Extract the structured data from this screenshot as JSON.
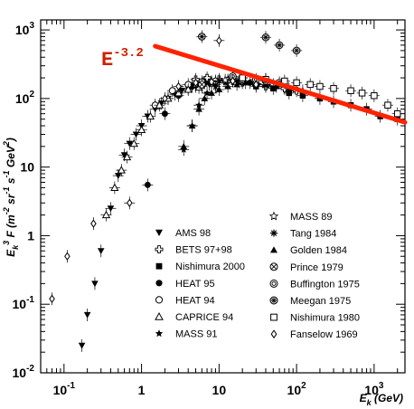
{
  "chart_data": {
    "type": "scatter",
    "xscale": "log",
    "yscale": "log",
    "xlim": [
      0.05,
      2500
    ],
    "ylim": [
      0.01,
      1400
    ],
    "xlabel": {
      "base": "E",
      "sub": "k",
      "unit": " (GeV)"
    },
    "ylabel": {
      "parts": [
        "E",
        "k",
        "3",
        " F (m",
        "-2",
        " sr",
        "-1",
        " s",
        "-1",
        " GeV",
        "2",
        ")"
      ]
    },
    "x_ticks": [
      {
        "base": "10",
        "exp": "-1"
      },
      {
        "base": "1",
        "exp": ""
      },
      {
        "base": "10",
        "exp": ""
      },
      {
        "base": "10",
        "exp": "2"
      },
      {
        "base": "10",
        "exp": "3"
      }
    ],
    "y_ticks": [
      {
        "base": "10",
        "exp": "-2"
      },
      {
        "base": "10",
        "exp": "-1"
      },
      {
        "base": "1",
        "exp": ""
      },
      {
        "base": "10",
        "exp": ""
      },
      {
        "base": "10",
        "exp": "2"
      },
      {
        "base": "10",
        "exp": "3"
      }
    ],
    "annotation": {
      "base": "E",
      "exp": "-3.2",
      "color": "#cc2200"
    },
    "power_law_line": {
      "x": [
        1.5,
        2500
      ],
      "y": [
        580,
        45
      ],
      "color": "#ff2200"
    },
    "legend": {
      "left": [
        "AMS 98",
        "BETS 97+98",
        "Nishimura 2000",
        "HEAT 95",
        "HEAT 94",
        "CAPRICE 94",
        "MASS 91"
      ],
      "right": [
        "MASS 89",
        "Tang 1984",
        "Golden 1984",
        "Prince 1979",
        "Buffington 1975",
        "Meegan 1975",
        "Nishimura 1980",
        "Fanselow 1969"
      ]
    },
    "series": [
      {
        "name": "AMS 98",
        "marker": "tri-down",
        "x": [
          0.17,
          0.2,
          0.25,
          0.3,
          0.4,
          0.5,
          0.6,
          0.7,
          0.85,
          1.0,
          1.2,
          1.5,
          1.8,
          2.2,
          2.7,
          3.3,
          4.0,
          5.0,
          6.0,
          7.5,
          9.0
        ],
        "y": [
          0.025,
          0.07,
          0.2,
          0.6,
          2.5,
          7.5,
          15,
          22,
          30,
          40,
          55,
          70,
          85,
          100,
          115,
          130,
          140,
          150,
          155,
          160,
          160
        ]
      },
      {
        "name": "BETS 97+98",
        "marker": "cross-open",
        "x": [
          5,
          7,
          10,
          15,
          20,
          30,
          40,
          50,
          70,
          100
        ],
        "y": [
          190,
          200,
          190,
          180,
          170,
          160,
          150,
          160,
          140,
          130
        ]
      },
      {
        "name": "Nishimura 2000",
        "marker": "square",
        "x": [
          30,
          50,
          80,
          120,
          200,
          300,
          500,
          800,
          1200,
          2000
        ],
        "y": [
          150,
          140,
          120,
          110,
          100,
          90,
          80,
          70,
          55,
          50
        ]
      },
      {
        "name": "HEAT 95",
        "marker": "circle",
        "x": [
          1.2,
          2.0,
          3.0,
          4.5,
          6.5,
          9.0,
          13,
          18,
          25
        ],
        "y": [
          5.5,
          60,
          110,
          150,
          170,
          175,
          180,
          175,
          170
        ]
      },
      {
        "name": "HEAT 94",
        "marker": "circle-open",
        "x": [
          1.5,
          2.5,
          4.0,
          6.0,
          9.0,
          13,
          20,
          30
        ],
        "y": [
          80,
          130,
          160,
          175,
          180,
          185,
          175,
          165
        ]
      },
      {
        "name": "CAPRICE 94",
        "marker": "tri-up-open",
        "x": [
          0.35,
          0.45,
          0.55,
          0.65,
          0.8,
          1.0,
          1.3,
          1.7,
          2.2,
          3.0,
          4.0,
          5.5
        ],
        "y": [
          2,
          5,
          9,
          14,
          22,
          35,
          55,
          80,
          100,
          120,
          135,
          145
        ]
      },
      {
        "name": "MASS 91",
        "marker": "star",
        "x": [
          3.5,
          4.5,
          5.5,
          7,
          9,
          12
        ],
        "y": [
          18,
          40,
          80,
          120,
          150,
          170
        ]
      },
      {
        "name": "MASS 89",
        "marker": "star-open",
        "x": [
          5,
          8,
          12,
          20
        ],
        "y": [
          160,
          175,
          185,
          180
        ]
      },
      {
        "name": "Tang 1984",
        "marker": "asterisk",
        "x": [
          6,
          10,
          20,
          40
        ],
        "y": [
          150,
          180,
          200,
          190
        ]
      },
      {
        "name": "Golden 1984",
        "marker": "tri-up",
        "x": [
          3.5,
          4.5,
          5.5,
          6.5,
          8,
          10,
          13,
          17,
          22,
          30,
          40,
          55,
          80,
          120
        ],
        "y": [
          20,
          40,
          70,
          100,
          120,
          135,
          150,
          160,
          170,
          165,
          160,
          150,
          140,
          130
        ]
      },
      {
        "name": "Prince 1979",
        "marker": "circle-cross",
        "x": [
          6,
          15,
          40
        ],
        "y": [
          160,
          200,
          180
        ]
      },
      {
        "name": "Buffington 1975",
        "marker": "circle-dot",
        "x": [
          15,
          30,
          60
        ],
        "y": [
          210,
          190,
          170
        ]
      },
      {
        "name": "Meegan 1975",
        "marker": "circle-star",
        "x": [
          6,
          40,
          60,
          100
        ],
        "y": [
          800,
          780,
          600,
          500
        ]
      },
      {
        "name": "Nishimura 1980",
        "marker": "square-open",
        "x": [
          20,
          40,
          70,
          100,
          150,
          200,
          300,
          500,
          700,
          1000,
          1500,
          2000
        ],
        "y": [
          200,
          190,
          180,
          170,
          160,
          150,
          140,
          130,
          120,
          110,
          80,
          60
        ]
      },
      {
        "name": "Fanselow 1969",
        "marker": "diamond-open",
        "x": [
          0.07,
          0.11,
          0.24,
          0.7,
          2,
          3,
          5,
          8,
          10,
          15,
          30
        ],
        "y": [
          0.12,
          0.5,
          1.5,
          3.0,
          100,
          150,
          170,
          175,
          700,
          180,
          160
        ]
      }
    ]
  }
}
